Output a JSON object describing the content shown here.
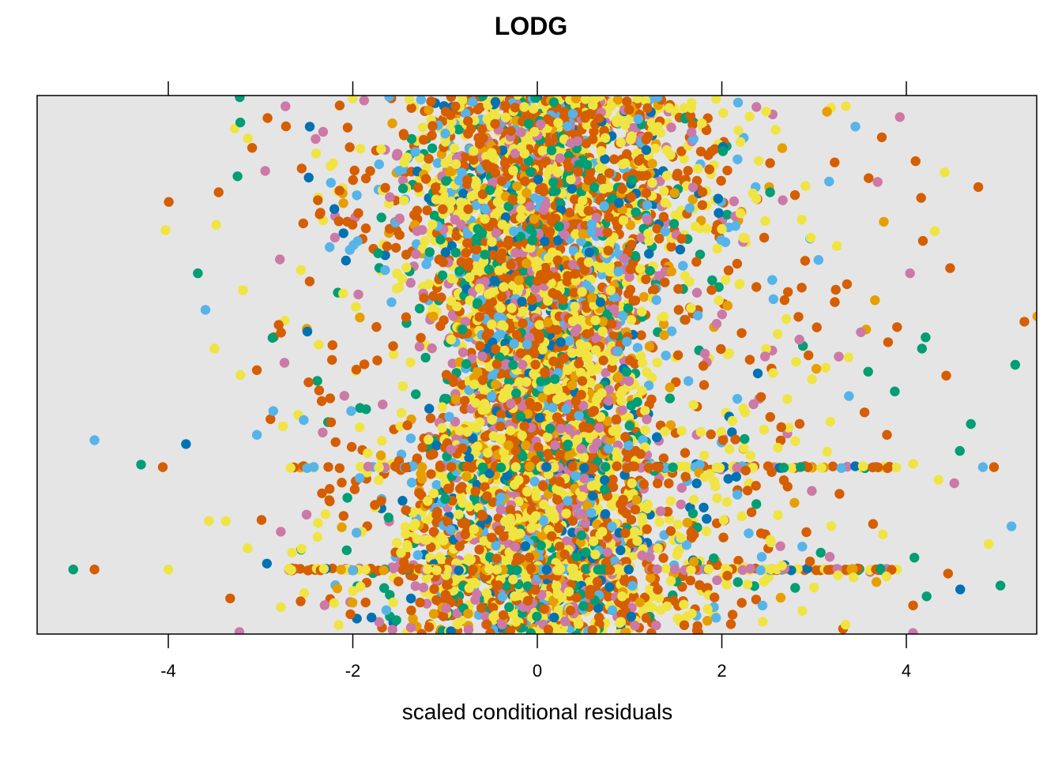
{
  "chart_data": {
    "type": "scatter",
    "title": "LODG",
    "xlabel": "scaled conditional residuals",
    "ylabel": "",
    "xlim": [
      -5.4,
      5.4
    ],
    "x_ticks": [
      -4,
      -2,
      0,
      2,
      4
    ],
    "x_tick_labels": [
      "-4",
      "-2",
      "0",
      "2",
      "4"
    ],
    "y_ticks_shown": false,
    "grid": false,
    "legend": "none",
    "panel_background": "#e5e5e5",
    "series_colors": [
      "#d55e00",
      "#f0e442",
      "#009e73",
      "#cc79a7",
      "#56b4e9",
      "#0072b2",
      "#e69f00"
    ],
    "outlier_points": [
      {
        "x": -5.03,
        "y": 0.12,
        "color": "#009e73"
      },
      {
        "x": -4.8,
        "y": 0.12,
        "color": "#d55e00"
      },
      {
        "x": -4.0,
        "y": 0.12,
        "color": "#f0e442"
      },
      {
        "x": -4.8,
        "y": 0.36,
        "color": "#56b4e9"
      },
      {
        "x": -4.06,
        "y": 0.31,
        "color": "#d55e00"
      },
      {
        "x": -4.03,
        "y": 0.75,
        "color": "#f0e442"
      },
      {
        "x": -3.68,
        "y": 0.67,
        "color": "#009e73"
      },
      {
        "x": -3.5,
        "y": 0.53,
        "color": "#f0e442"
      },
      {
        "x": -3.48,
        "y": 0.76,
        "color": "#f0e442"
      },
      {
        "x": -3.25,
        "y": 0.85,
        "color": "#009e73"
      },
      {
        "x": -3.22,
        "y": 0.95,
        "color": "#009e73"
      },
      {
        "x": -3.04,
        "y": 0.49,
        "color": "#d55e00"
      },
      {
        "x": -3.04,
        "y": 0.37,
        "color": "#56b4e9"
      },
      {
        "x": -2.87,
        "y": 0.55,
        "color": "#009e73"
      },
      {
        "x": -2.95,
        "y": 0.86,
        "color": "#cc79a7"
      },
      {
        "x": -2.73,
        "y": 0.98,
        "color": "#cc79a7"
      },
      {
        "x": -3.56,
        "y": 0.21,
        "color": "#f0e442"
      },
      {
        "x": -2.78,
        "y": 0.05,
        "color": "#f0e442"
      },
      {
        "x": -2.78,
        "y": 0.19,
        "color": "#cc79a7"
      },
      {
        "x": 4.78,
        "y": 0.83,
        "color": "#d55e00"
      },
      {
        "x": 5.28,
        "y": 0.58,
        "color": "#d55e00"
      },
      {
        "x": 5.18,
        "y": 0.5,
        "color": "#009e73"
      },
      {
        "x": 5.14,
        "y": 0.2,
        "color": "#56b4e9"
      },
      {
        "x": 5.02,
        "y": 0.09,
        "color": "#009e73"
      },
      {
        "x": 4.95,
        "y": 0.31,
        "color": "#d55e00"
      },
      {
        "x": 4.83,
        "y": 0.31,
        "color": "#56b4e9"
      },
      {
        "x": 4.7,
        "y": 0.39,
        "color": "#009e73"
      },
      {
        "x": 4.58,
        "y": 0.34,
        "color": "#009e73"
      },
      {
        "x": 4.52,
        "y": 0.28,
        "color": "#cc79a7"
      },
      {
        "x": 4.16,
        "y": 0.81,
        "color": "#d55e00"
      },
      {
        "x": 4.18,
        "y": 0.73,
        "color": "#d55e00"
      },
      {
        "x": 4.17,
        "y": 0.53,
        "color": "#009e73"
      },
      {
        "x": 4.22,
        "y": 0.07,
        "color": "#009e73"
      },
      {
        "x": 4.04,
        "y": 0.67,
        "color": "#cc79a7"
      },
      {
        "x": 3.9,
        "y": 0.57,
        "color": "#d55e00"
      },
      {
        "x": 3.93,
        "y": 0.96,
        "color": "#cc79a7"
      },
      {
        "x": 3.79,
        "y": 0.37,
        "color": "#d55e00"
      },
      {
        "x": 3.66,
        "y": 0.62,
        "color": "#e69f00"
      },
      {
        "x": 3.14,
        "y": 0.97,
        "color": "#e69f00"
      },
      {
        "x": 5.42,
        "y": 0.59,
        "color": "#e69f00"
      }
    ]
  }
}
